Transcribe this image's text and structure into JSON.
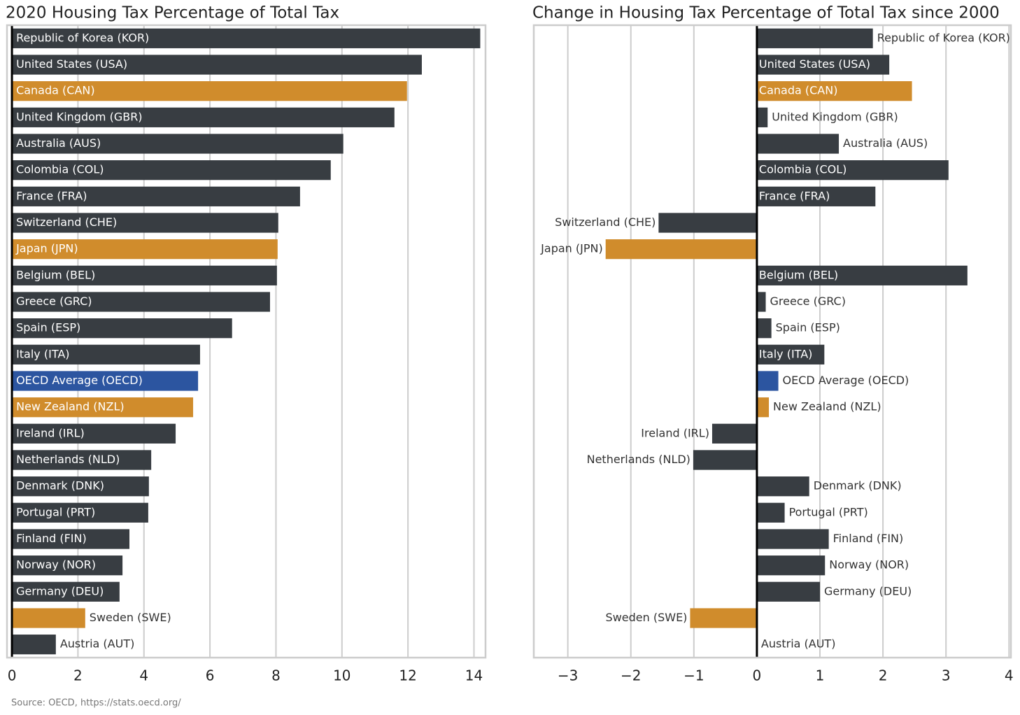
{
  "chart_data": [
    {
      "type": "bar",
      "orientation": "horizontal",
      "title": "2020 Housing Tax Percentage of Total Tax",
      "categories": [
        "Republic of Korea (KOR)",
        "United States (USA)",
        "Canada (CAN)",
        "United Kingdom (GBR)",
        "Australia (AUS)",
        "Colombia (COL)",
        "France (FRA)",
        "Switzerland (CHE)",
        "Japan (JPN)",
        "Belgium (BEL)",
        "Greece (GRC)",
        "Spain (ESP)",
        "Italy (ITA)",
        "OECD Average (OECD)",
        "New Zealand (NZL)",
        "Ireland (IRL)",
        "Netherlands (NLD)",
        "Denmark (DNK)",
        "Portugal (PRT)",
        "Finland (FIN)",
        "Norway (NOR)",
        "Germany (DEU)",
        "Sweden (SWE)",
        "Austria (AUT)"
      ],
      "values": [
        14.19,
        12.42,
        11.97,
        11.59,
        10.04,
        9.66,
        8.73,
        8.07,
        8.05,
        8.03,
        7.82,
        6.67,
        5.7,
        5.64,
        5.49,
        4.96,
        4.22,
        4.15,
        4.13,
        3.56,
        3.35,
        3.26,
        2.22,
        1.33
      ],
      "colors": [
        "#383d42",
        "#383d42",
        "#d08c2c",
        "#383d42",
        "#383d42",
        "#383d42",
        "#383d42",
        "#383d42",
        "#d08c2c",
        "#383d42",
        "#383d42",
        "#383d42",
        "#383d42",
        "#2c55a0",
        "#d08c2c",
        "#383d42",
        "#383d42",
        "#383d42",
        "#383d42",
        "#383d42",
        "#383d42",
        "#383d42",
        "#d08c2c",
        "#383d42"
      ],
      "xlim": [
        -0.15,
        14.35
      ],
      "xticks": [
        0,
        2,
        4,
        6,
        8,
        10,
        12,
        14
      ],
      "grid": true
    },
    {
      "type": "bar",
      "orientation": "horizontal",
      "title": "Change in Housing Tax Percentage of Total Tax since 2000",
      "categories": [
        "Republic of Korea (KOR)",
        "United States (USA)",
        "Canada (CAN)",
        "United Kingdom (GBR)",
        "Australia (AUS)",
        "Colombia (COL)",
        "France (FRA)",
        "Switzerland (CHE)",
        "Japan (JPN)",
        "Belgium (BEL)",
        "Greece (GRC)",
        "Spain (ESP)",
        "Italy (ITA)",
        "OECD Average (OECD)",
        "New Zealand (NZL)",
        "Ireland (IRL)",
        "Netherlands (NLD)",
        "Denmark (DNK)",
        "Portugal (PRT)",
        "Finland (FIN)",
        "Norway (NOR)",
        "Germany (DEU)",
        "Sweden (SWE)",
        "Austria (AUT)"
      ],
      "values": [
        1.84,
        2.1,
        2.46,
        0.17,
        1.3,
        3.04,
        1.88,
        -1.56,
        -2.4,
        3.34,
        0.14,
        0.23,
        1.07,
        0.34,
        0.19,
        -0.71,
        -1.01,
        0.83,
        0.44,
        1.14,
        1.08,
        1.0,
        -1.06,
        0
      ],
      "colors": [
        "#383d42",
        "#383d42",
        "#d08c2c",
        "#383d42",
        "#383d42",
        "#383d42",
        "#383d42",
        "#383d42",
        "#d08c2c",
        "#383d42",
        "#383d42",
        "#383d42",
        "#383d42",
        "#2c55a0",
        "#d08c2c",
        "#383d42",
        "#383d42",
        "#383d42",
        "#383d42",
        "#383d42",
        "#383d42",
        "#383d42",
        "#d08c2c",
        "#383d42"
      ],
      "xlim": [
        -3.54,
        4.03
      ],
      "xticks": [
        {
          "value": -3,
          "label": "−3"
        },
        {
          "value": -2,
          "label": "−2"
        },
        {
          "value": -1,
          "label": "−1"
        },
        0,
        1,
        2,
        3,
        4
      ],
      "grid": true
    }
  ],
  "source": "Source: OECD, https://stats.oecd.org/"
}
